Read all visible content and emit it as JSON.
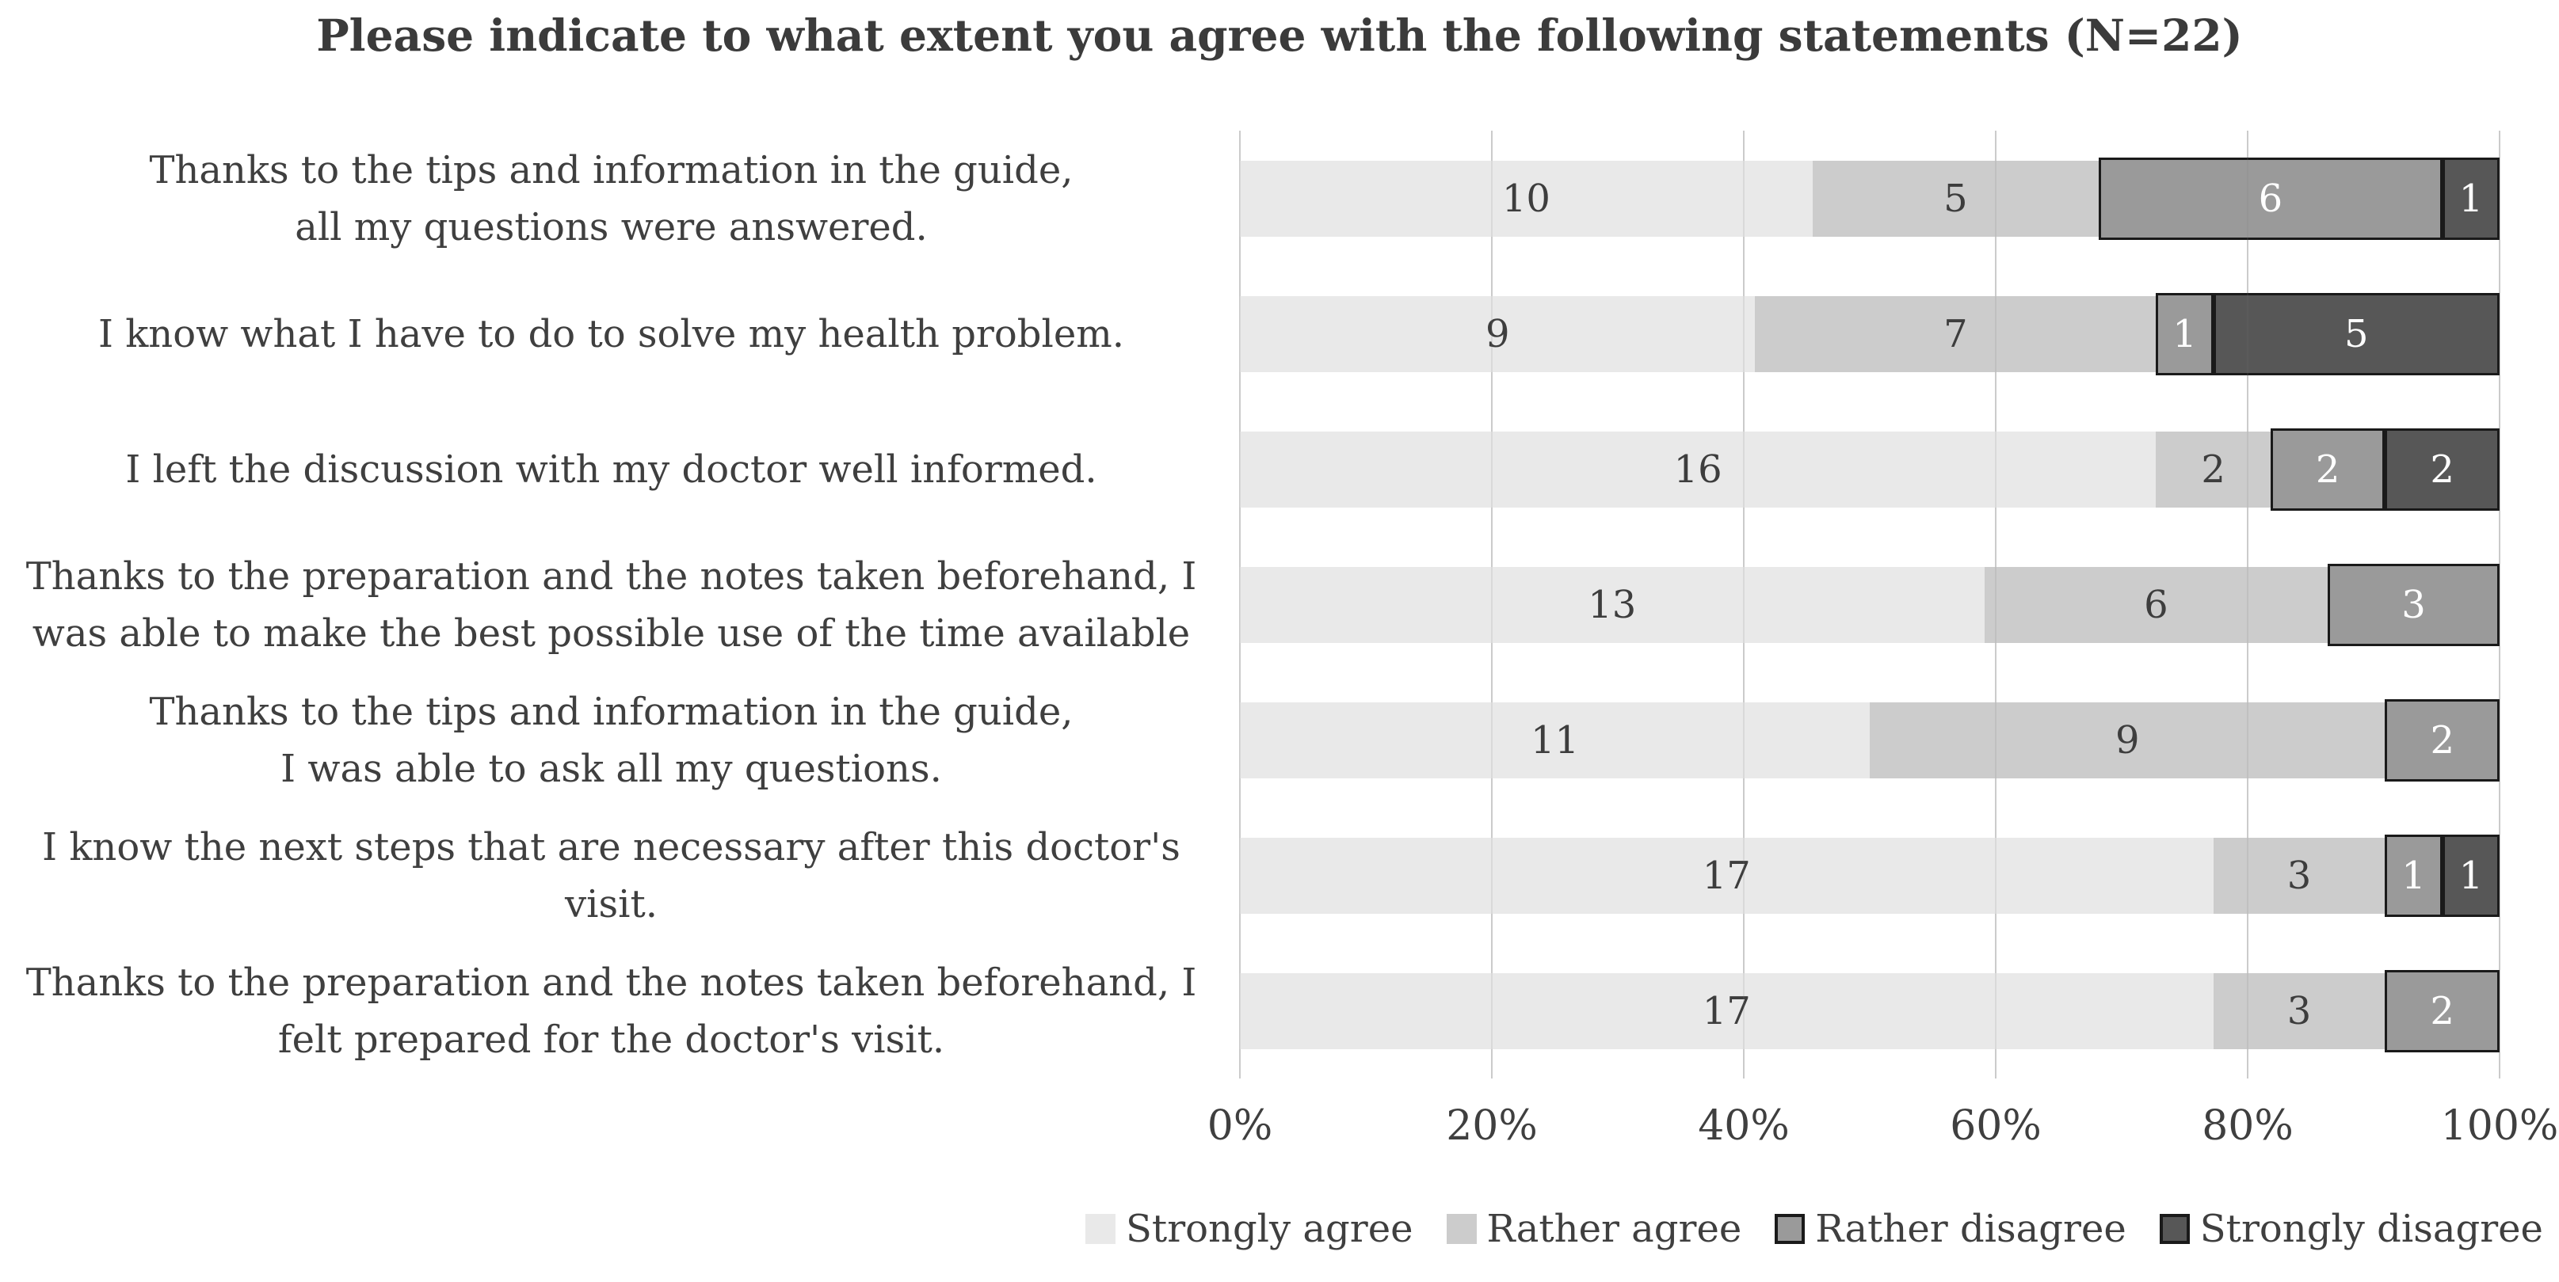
{
  "title": "Please indicate to what extent you agree with the following statements (N=22)",
  "colors": {
    "strongly_agree": "#e9e9e9",
    "rather_agree": "#cccccc",
    "rather_disagree": "#9a9a9a",
    "strongly_disagree": "#575757",
    "segment_border": "#1a1a1a",
    "gridline": "#d9d9d9",
    "text": "#3f3f3f",
    "value_text_dark": "#3d3d3d",
    "value_text_light": "#ffffff"
  },
  "chart_data": {
    "type": "bar",
    "orientation": "horizontal-stacked",
    "title": "Please indicate to what extent you agree with the following statements (N=22)",
    "total_per_row": 22,
    "categories": [
      "Thanks to the tips and information in the guide, all my questions were answered.",
      "I know what I have to do to solve my health problem.",
      "I left the discussion with my doctor well informed.",
      "Thanks to the preparation and the notes taken beforehand, I was able to make the best possible use of the time available",
      "Thanks to the tips and information in the guide, I was able to ask all my questions.",
      "I know the next steps that are necessary after this doctor's visit.",
      "Thanks to the preparation and the notes taken beforehand, I felt prepared for the doctor's visit."
    ],
    "category_lines": [
      [
        "Thanks to the tips and information in the guide,",
        "all my questions were answered."
      ],
      [
        "I know what I have to do to solve my health problem."
      ],
      [
        "I left the discussion with my doctor well informed."
      ],
      [
        "Thanks to the preparation and the notes taken beforehand, I",
        "was able to make the best possible use of the time available"
      ],
      [
        "Thanks to the tips and information in the guide,",
        "I was able to ask all my questions."
      ],
      [
        "I know the next steps that are necessary after this doctor's",
        "visit."
      ],
      [
        "Thanks to the preparation and the notes taken beforehand, I",
        "felt prepared for the doctor's visit."
      ]
    ],
    "series": [
      {
        "name": "Strongly agree",
        "color": "#e9e9e9",
        "border": false,
        "text_color": "#3d3d3d",
        "values": [
          10,
          9,
          16,
          13,
          11,
          17,
          17
        ]
      },
      {
        "name": "Rather agree",
        "color": "#cccccc",
        "border": false,
        "text_color": "#3d3d3d",
        "values": [
          5,
          7,
          2,
          6,
          9,
          3,
          3
        ]
      },
      {
        "name": "Rather disagree",
        "color": "#9a9a9a",
        "border": true,
        "text_color": "#ffffff",
        "values": [
          6,
          1,
          2,
          3,
          2,
          1,
          2
        ]
      },
      {
        "name": "Strongly disagree",
        "color": "#575757",
        "border": true,
        "text_color": "#ffffff",
        "values": [
          1,
          5,
          2,
          0,
          0,
          1,
          0
        ]
      }
    ],
    "x_ticks": [
      "0%",
      "20%",
      "40%",
      "60%",
      "80%",
      "100%"
    ],
    "xlim": [
      0,
      100
    ],
    "grid": true,
    "legend_position": "bottom"
  }
}
